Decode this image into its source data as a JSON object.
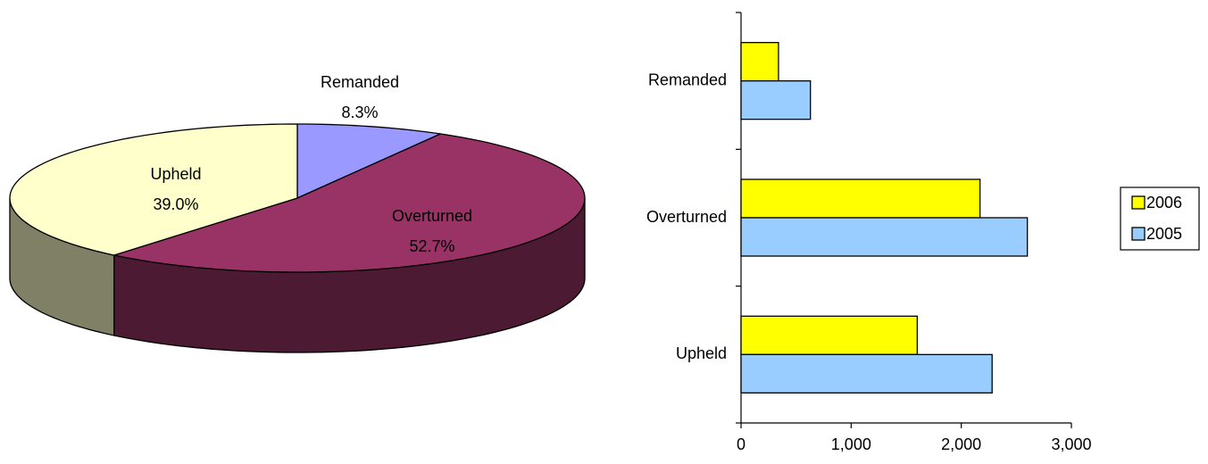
{
  "colors": {
    "upheld_top": "#FFFFCC",
    "upheld_side": "#808066",
    "overturned_top": "#993366",
    "overturned_side": "#4D1A33",
    "remanded_top": "#9999FF",
    "remanded_side": "#4D4D80",
    "series_2006": "#FFFF00",
    "series_2005": "#99CCFF",
    "outline": "#000000"
  },
  "chart_data": [
    {
      "type": "pie",
      "style": "3d",
      "slices": [
        {
          "label": "Remanded",
          "percent_label": "8.3%",
          "value": 8.3,
          "color_key": "remanded"
        },
        {
          "label": "Overturned",
          "percent_label": "52.7%",
          "value": 52.7,
          "color_key": "overturned"
        },
        {
          "label": "Upheld",
          "percent_label": "39.0%",
          "value": 39.0,
          "color_key": "upheld"
        }
      ]
    },
    {
      "type": "bar",
      "orientation": "horizontal",
      "categories": [
        "Remanded",
        "Overturned",
        "Upheld"
      ],
      "series": [
        {
          "name": "2006",
          "values": [
            340,
            2170,
            1600
          ],
          "color_key": "series_2006"
        },
        {
          "name": "2005",
          "values": [
            630,
            2600,
            2280
          ],
          "color_key": "series_2005"
        }
      ],
      "xlim": [
        0,
        3000
      ],
      "xticks": [
        "0",
        "1,000",
        "2,000",
        "3,000"
      ],
      "xtick_values": [
        0,
        1000,
        2000,
        3000
      ],
      "legend": [
        "2006",
        "2005"
      ],
      "legend_position": "right",
      "grid": false
    }
  ]
}
